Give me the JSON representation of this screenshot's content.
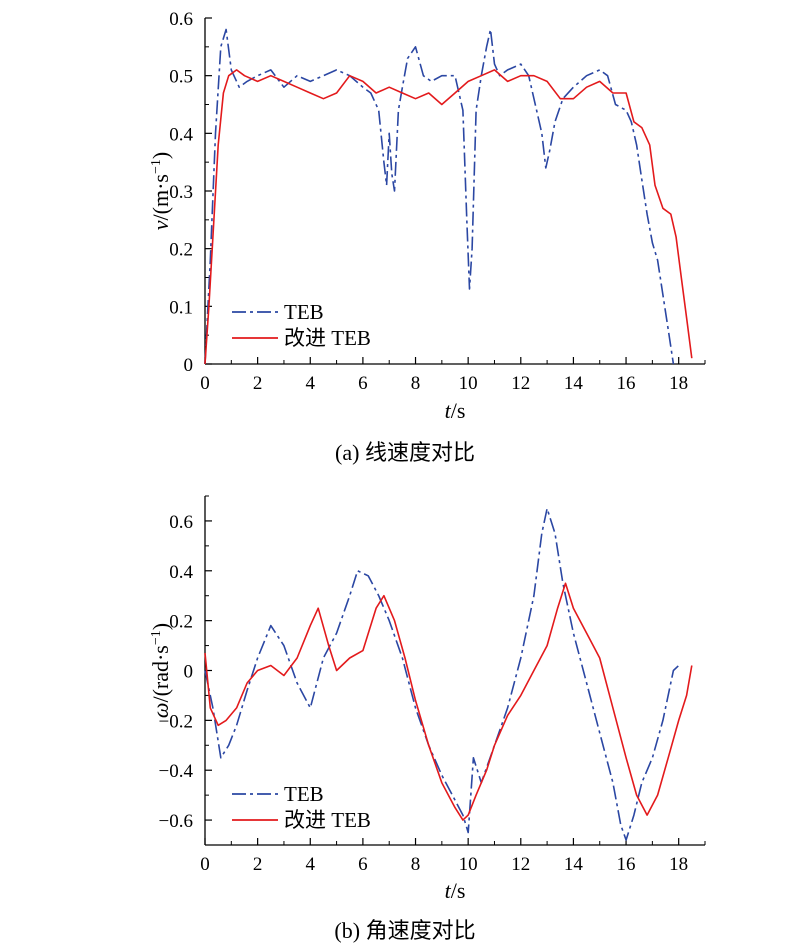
{
  "chart_data": [
    {
      "type": "line",
      "caption": "(a) 线速度对比",
      "xlabel": "t/s",
      "ylabel": "v/(m·s−1)",
      "xlim": [
        0,
        19
      ],
      "ylim": [
        0,
        0.6
      ],
      "x_ticks": [
        "0",
        "2",
        "4",
        "6",
        "8",
        "10",
        "12",
        "14",
        "16",
        "18"
      ],
      "y_ticks": [
        "0",
        "0.1",
        "0.2",
        "0.3",
        "0.4",
        "0.5",
        "0.6"
      ],
      "legend_position": "bottom-left",
      "series": [
        {
          "name": "TEB",
          "color": "#2b47a3",
          "style": "dash-dot",
          "x": [
            0,
            0.2,
            0.4,
            0.6,
            0.8,
            1.0,
            1.3,
            1.6,
            2.0,
            2.5,
            3.0,
            3.5,
            4.0,
            4.5,
            5.0,
            5.5,
            6.0,
            6.3,
            6.6,
            6.8,
            6.9,
            7.0,
            7.1,
            7.2,
            7.35,
            7.5,
            7.7,
            8.0,
            8.3,
            8.6,
            9.0,
            9.5,
            9.8,
            9.95,
            10.05,
            10.15,
            10.3,
            10.5,
            10.7,
            10.85,
            11.0,
            11.2,
            11.5,
            12.0,
            12.3,
            12.6,
            12.8,
            12.95,
            13.1,
            13.3,
            13.6,
            14.0,
            14.5,
            15.0,
            15.3,
            15.6,
            16.0,
            16.2,
            16.4,
            16.6,
            16.8,
            17.0,
            17.2,
            17.4,
            17.6,
            17.8
          ],
          "y": [
            0,
            0.18,
            0.4,
            0.55,
            0.58,
            0.51,
            0.48,
            0.49,
            0.5,
            0.51,
            0.48,
            0.5,
            0.49,
            0.5,
            0.51,
            0.5,
            0.48,
            0.47,
            0.44,
            0.35,
            0.31,
            0.4,
            0.33,
            0.3,
            0.44,
            0.48,
            0.53,
            0.55,
            0.5,
            0.49,
            0.5,
            0.5,
            0.44,
            0.25,
            0.13,
            0.2,
            0.44,
            0.5,
            0.55,
            0.58,
            0.52,
            0.5,
            0.51,
            0.52,
            0.5,
            0.44,
            0.4,
            0.34,
            0.37,
            0.42,
            0.46,
            0.48,
            0.5,
            0.51,
            0.5,
            0.45,
            0.44,
            0.42,
            0.38,
            0.32,
            0.26,
            0.21,
            0.18,
            0.12,
            0.06,
            0.0
          ]
        },
        {
          "name": "改进 TEB",
          "color": "#e31a1c",
          "style": "solid",
          "x": [
            0,
            0.15,
            0.3,
            0.5,
            0.7,
            0.9,
            1.2,
            1.5,
            2.0,
            2.5,
            3.0,
            3.5,
            4.0,
            4.5,
            5.0,
            5.5,
            6.0,
            6.5,
            7.0,
            7.5,
            8.0,
            8.5,
            9.0,
            9.5,
            10.0,
            10.5,
            11.0,
            11.5,
            12.0,
            12.5,
            13.0,
            13.5,
            14.0,
            14.5,
            15.0,
            15.5,
            16.0,
            16.3,
            16.6,
            16.9,
            17.1,
            17.4,
            17.7,
            17.9,
            18.1,
            18.3,
            18.5
          ],
          "y": [
            0,
            0.1,
            0.22,
            0.38,
            0.47,
            0.5,
            0.51,
            0.5,
            0.49,
            0.5,
            0.49,
            0.48,
            0.47,
            0.46,
            0.47,
            0.5,
            0.49,
            0.47,
            0.48,
            0.47,
            0.46,
            0.47,
            0.45,
            0.47,
            0.49,
            0.5,
            0.51,
            0.49,
            0.5,
            0.5,
            0.49,
            0.46,
            0.46,
            0.48,
            0.49,
            0.47,
            0.47,
            0.42,
            0.41,
            0.38,
            0.31,
            0.27,
            0.26,
            0.22,
            0.15,
            0.08,
            0.01
          ]
        }
      ]
    },
    {
      "type": "line",
      "caption": "(b) 角速度对比",
      "xlabel": "t/s",
      "ylabel": "ω/(rad·s−1)",
      "xlim": [
        0,
        19
      ],
      "ylim": [
        -0.7,
        0.7
      ],
      "x_ticks": [
        "0",
        "2",
        "4",
        "6",
        "8",
        "10",
        "12",
        "14",
        "16",
        "18"
      ],
      "y_ticks": [
        "−0.6",
        "−0.4",
        "−0.2",
        "0",
        "0.2",
        "0.4",
        "0.6"
      ],
      "legend_position": "bottom-left",
      "series": [
        {
          "name": "TEB",
          "color": "#2b47a3",
          "style": "dash-dot",
          "x": [
            0,
            0.3,
            0.6,
            0.9,
            1.2,
            1.6,
            2.0,
            2.5,
            3.0,
            3.5,
            4.0,
            4.5,
            5.0,
            5.5,
            5.8,
            6.2,
            6.6,
            7.0,
            7.5,
            8.0,
            8.5,
            9.0,
            9.5,
            9.8,
            10.0,
            10.2,
            10.5,
            11.0,
            11.5,
            12.0,
            12.5,
            12.8,
            13.0,
            13.3,
            13.6,
            14.0,
            14.5,
            15.0,
            15.5,
            15.8,
            16.0,
            16.3,
            16.6,
            17.0,
            17.4,
            17.8,
            18.0
          ],
          "y": [
            0.0,
            -0.15,
            -0.35,
            -0.3,
            -0.22,
            -0.08,
            0.05,
            0.18,
            0.1,
            -0.05,
            -0.15,
            0.05,
            0.15,
            0.3,
            0.4,
            0.38,
            0.3,
            0.2,
            0.05,
            -0.15,
            -0.3,
            -0.42,
            -0.52,
            -0.58,
            -0.65,
            -0.35,
            -0.45,
            -0.3,
            -0.15,
            0.05,
            0.3,
            0.55,
            0.65,
            0.55,
            0.35,
            0.15,
            -0.05,
            -0.25,
            -0.45,
            -0.62,
            -0.68,
            -0.58,
            -0.45,
            -0.35,
            -0.2,
            0.0,
            0.02
          ]
        },
        {
          "name": "改进 TEB",
          "color": "#e31a1c",
          "style": "solid",
          "x": [
            0,
            0.2,
            0.5,
            0.8,
            1.2,
            1.6,
            2.0,
            2.5,
            3.0,
            3.5,
            4.0,
            4.3,
            4.7,
            5.0,
            5.5,
            6.0,
            6.5,
            6.8,
            7.2,
            7.6,
            8.0,
            8.5,
            9.0,
            9.5,
            9.8,
            10.0,
            10.3,
            10.7,
            11.0,
            11.5,
            12.0,
            12.5,
            13.0,
            13.4,
            13.7,
            14.0,
            14.5,
            15.0,
            15.5,
            16.0,
            16.4,
            16.8,
            17.2,
            17.6,
            18.0,
            18.3,
            18.5
          ],
          "y": [
            0.07,
            -0.15,
            -0.22,
            -0.2,
            -0.15,
            -0.05,
            0.0,
            0.02,
            -0.02,
            0.05,
            0.18,
            0.25,
            0.1,
            0.0,
            0.05,
            0.08,
            0.25,
            0.3,
            0.2,
            0.05,
            -0.12,
            -0.3,
            -0.45,
            -0.55,
            -0.6,
            -0.58,
            -0.5,
            -0.4,
            -0.3,
            -0.18,
            -0.1,
            0.0,
            0.1,
            0.25,
            0.35,
            0.25,
            0.15,
            0.05,
            -0.15,
            -0.35,
            -0.5,
            -0.58,
            -0.5,
            -0.35,
            -0.2,
            -0.1,
            0.02
          ]
        }
      ]
    }
  ]
}
